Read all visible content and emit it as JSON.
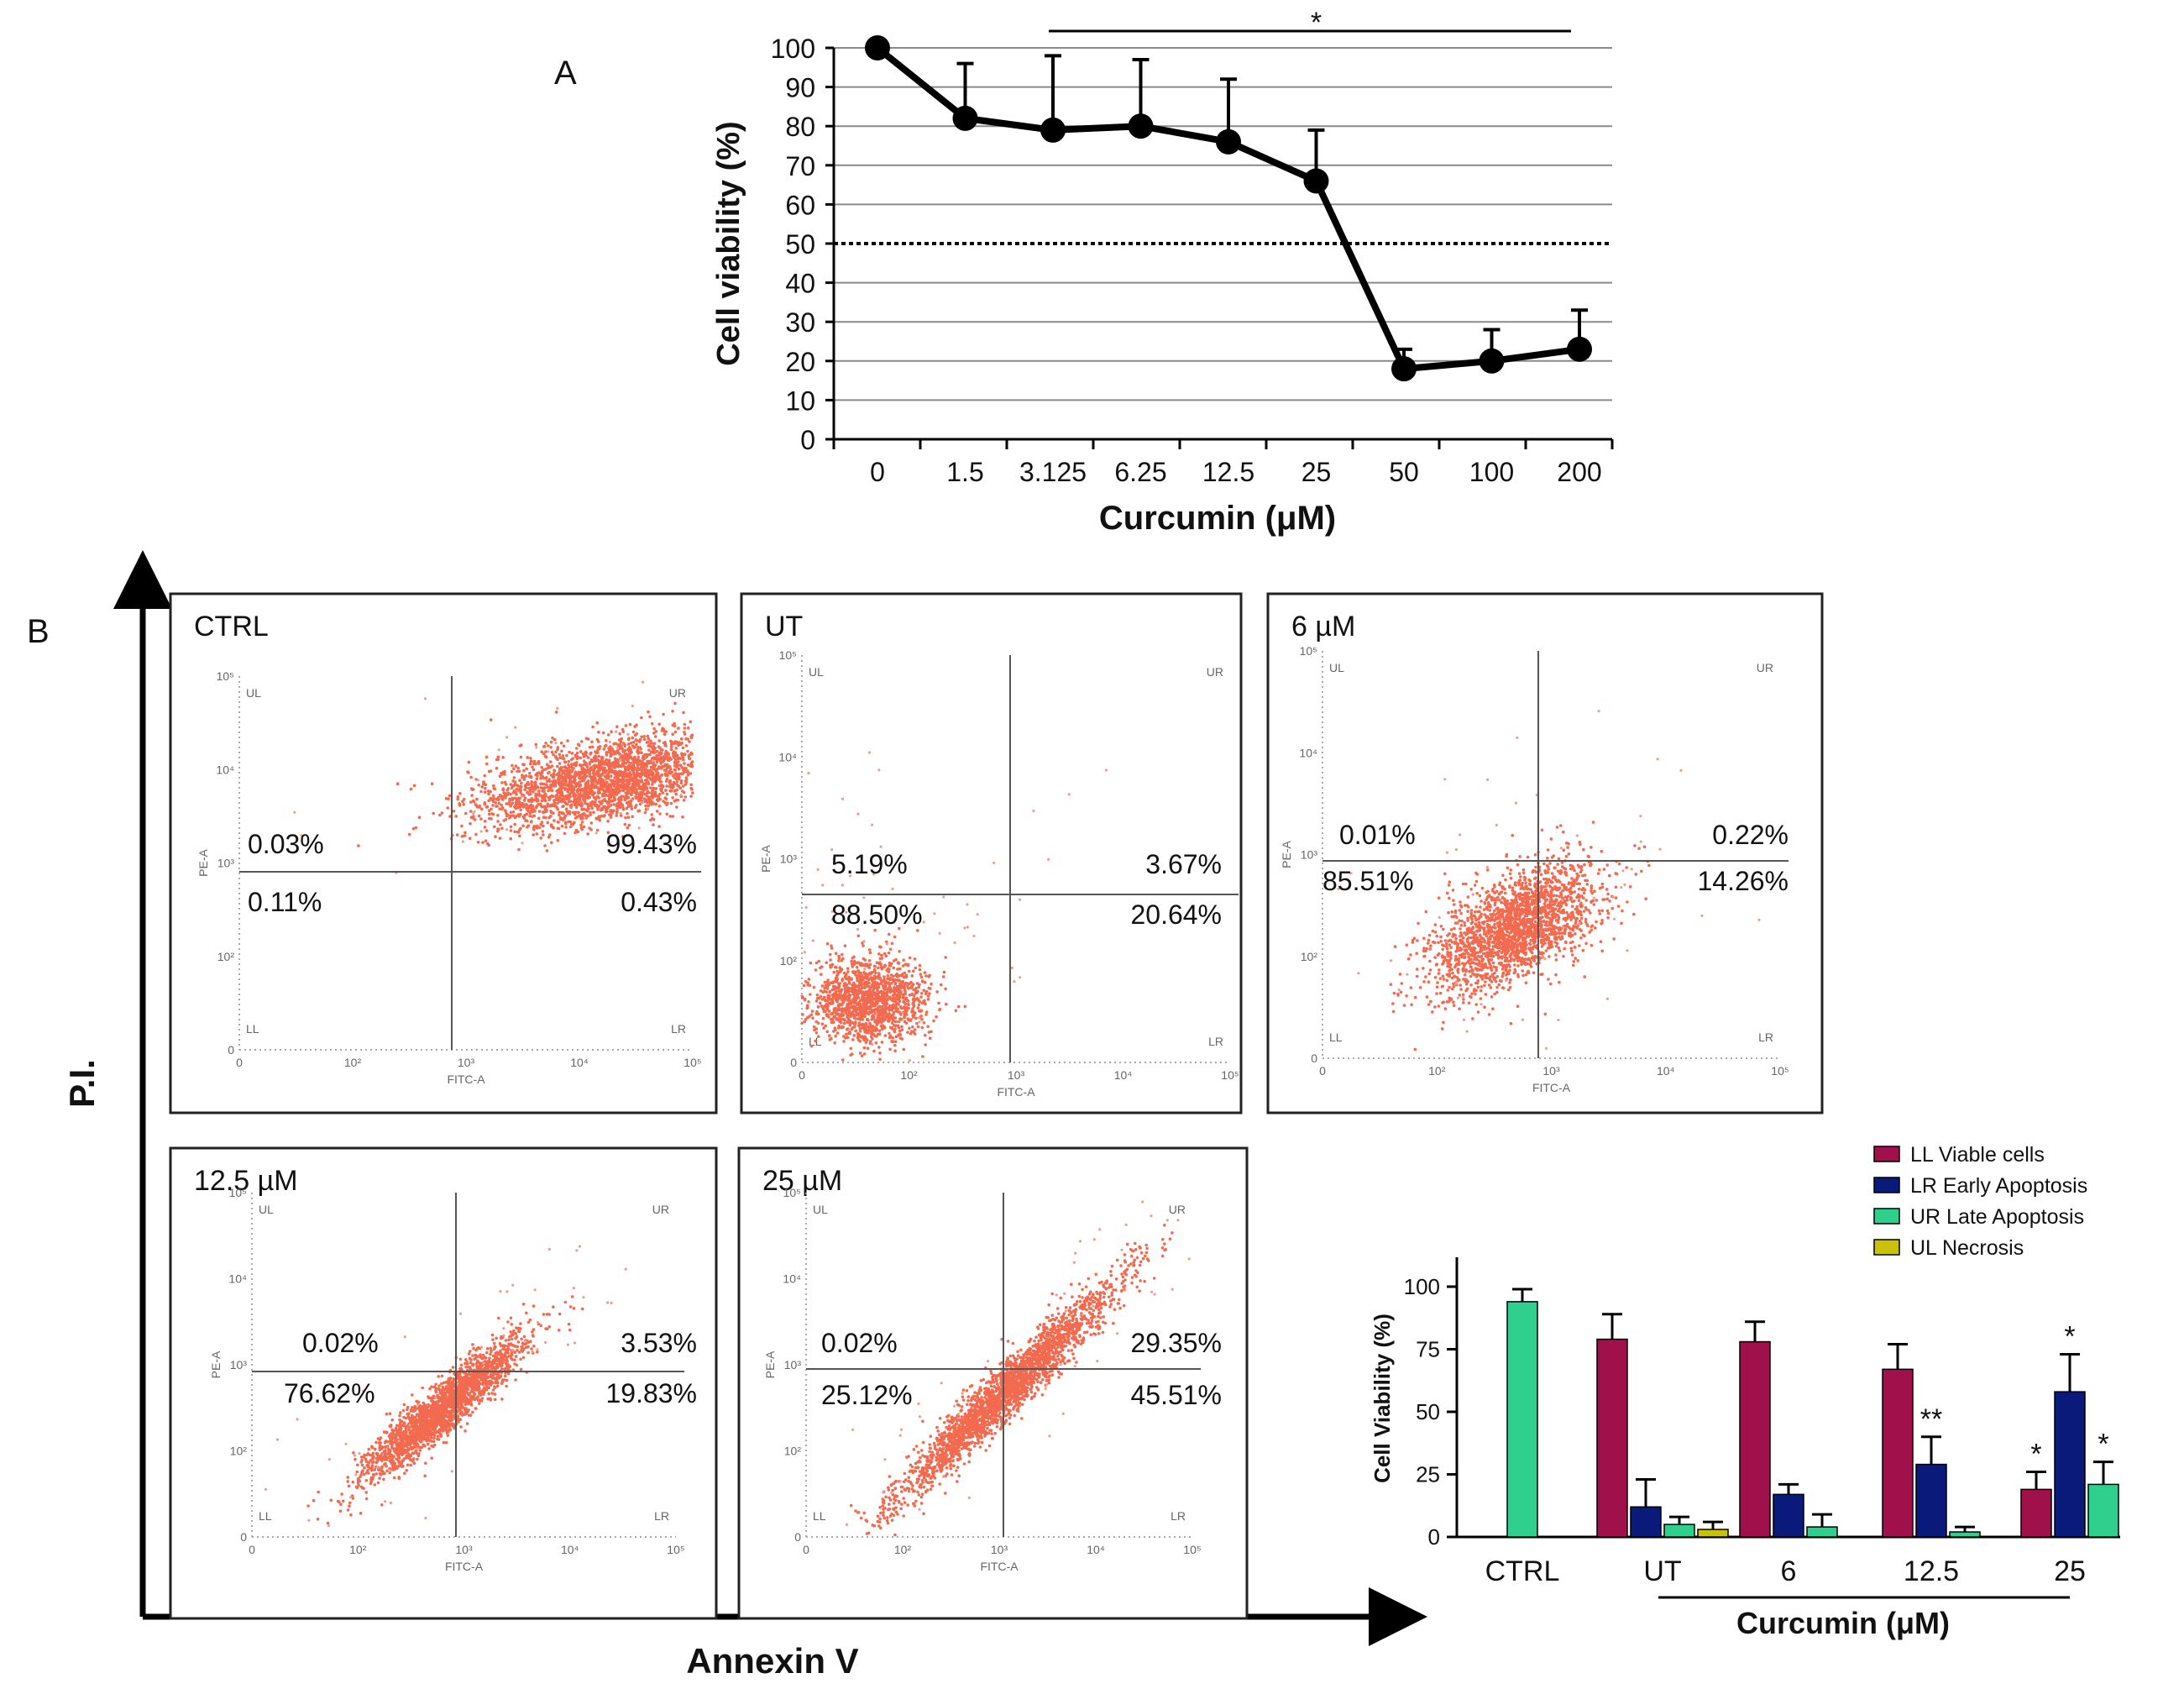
{
  "figure": {
    "label_a": "A",
    "label_b": "B"
  },
  "chart_data": [
    {
      "id": "A",
      "type": "line",
      "title": "",
      "xlabel": "Curcumin (μM)",
      "ylabel": "Cell viability (%)",
      "categories": [
        "0",
        "1.5",
        "3.125",
        "6.25",
        "12.5",
        "25",
        "50",
        "100",
        "200"
      ],
      "series": [
        {
          "name": "Cell viability",
          "values": [
            100,
            82,
            79,
            80,
            76,
            66,
            18,
            20,
            23
          ],
          "errors": [
            0,
            14,
            19,
            17,
            16,
            13,
            5,
            8,
            10
          ]
        }
      ],
      "ylim": [
        0,
        100
      ],
      "yticks": [
        0,
        10,
        20,
        30,
        40,
        50,
        60,
        70,
        80,
        90,
        100
      ],
      "grid": true,
      "reference_line": {
        "y": 50,
        "style": "dotted"
      },
      "significance": {
        "label": "*",
        "from_category": "3.125",
        "to_category": "200"
      }
    },
    {
      "id": "B-flow",
      "type": "scatter",
      "x_axis_label": "Annexin V",
      "y_axis_label": "P.I.",
      "channel_x": "FITC-A",
      "channel_y": "PE-A",
      "quadrant_names": {
        "ul": "UL",
        "ur": "UR",
        "ll": "LL",
        "lr": "LR"
      },
      "tick_labels_x": [
        "0",
        "10²",
        "10³",
        "10⁴",
        "10⁵"
      ],
      "tick_labels_y": [
        "0",
        "10²",
        "10³",
        "10⁴",
        "10⁵"
      ],
      "panels": [
        {
          "title": "CTRL",
          "ul": "0.03%",
          "ur": "99.43%",
          "ll": "0.11%",
          "lr": "0.43%"
        },
        {
          "title": "UT",
          "ul": "5.19%",
          "ur": "3.67%",
          "ll": "88.50%",
          "lr": "20.64%"
        },
        {
          "title": "6 µM",
          "ul": "0.01%",
          "ur": "0.22%",
          "ll": "85.51%",
          "lr": "14.26%"
        },
        {
          "title": "12.5 µM",
          "ul": "0.02%",
          "ur": "3.53%",
          "ll": "76.62%",
          "lr": "19.83%"
        },
        {
          "title": "25 µM",
          "ul": "0.02%",
          "ur": "29.35%",
          "ll": "25.12%",
          "lr": "45.51%"
        }
      ]
    },
    {
      "id": "B-bar",
      "type": "bar",
      "title": "",
      "xlabel": "Curcumin (μM)",
      "ylabel": "Cell Viability (%)",
      "categories": [
        "CTRL",
        "UT",
        "6",
        "12.5",
        "25"
      ],
      "ylim": [
        0,
        100
      ],
      "yticks": [
        0,
        25,
        50,
        75,
        100
      ],
      "legend_position": "top-right",
      "series": [
        {
          "name": "LL Viable cells",
          "color": "#a0104a",
          "values": [
            0,
            79,
            78,
            67,
            19
          ],
          "errors": [
            0,
            10,
            8,
            10,
            7
          ],
          "sig": [
            "",
            "",
            "",
            "",
            "*"
          ]
        },
        {
          "name": "LR Early Apoptosis",
          "color": "#0a1a7a",
          "values": [
            0,
            12,
            17,
            29,
            58
          ],
          "errors": [
            0,
            11,
            4,
            11,
            15
          ],
          "sig": [
            "",
            "",
            "",
            "**",
            "*"
          ]
        },
        {
          "name": "UR Late Apoptosis",
          "color": "#2fcf8e",
          "values": [
            94,
            5,
            4,
            2,
            21
          ],
          "errors": [
            5,
            3,
            5,
            2,
            9
          ],
          "sig": [
            "",
            "",
            "",
            "",
            "*"
          ]
        },
        {
          "name": "UL Necrosis",
          "color": "#c8c20a",
          "values": [
            0,
            3,
            0,
            0,
            0
          ],
          "errors": [
            0,
            3,
            0,
            0,
            0
          ],
          "sig": [
            "",
            "",
            "",
            "",
            ""
          ]
        }
      ]
    }
  ]
}
